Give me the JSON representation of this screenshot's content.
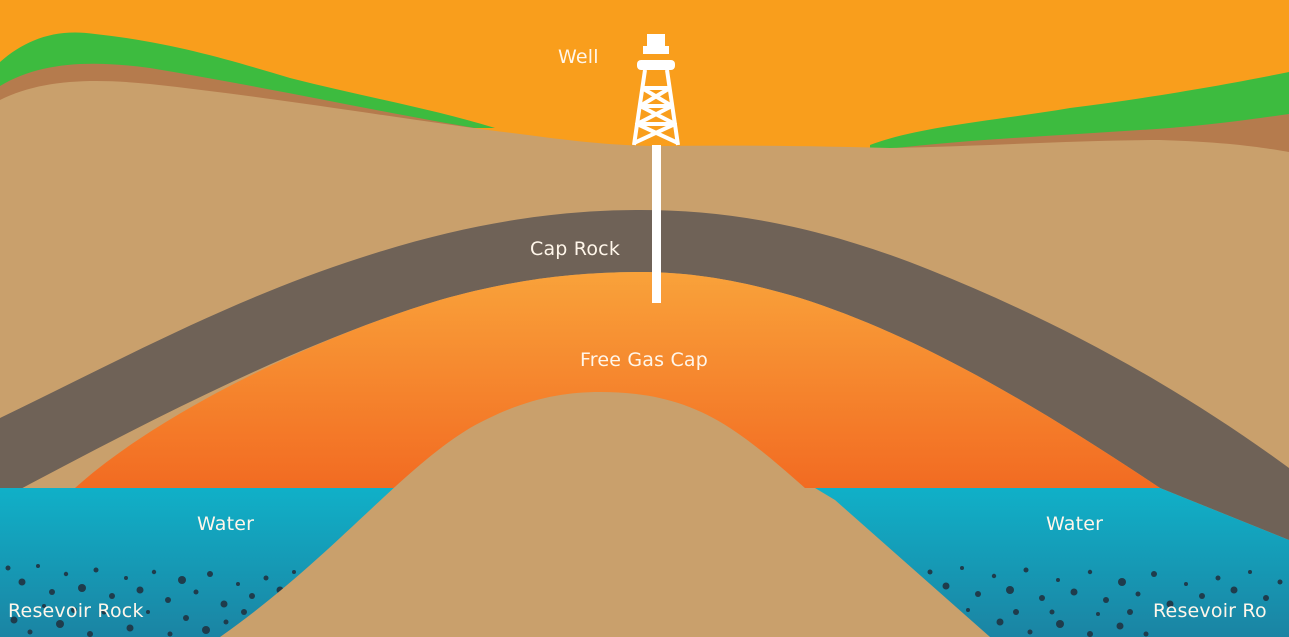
{
  "labels": {
    "well": "Well",
    "cap_rock": "Cap Rock",
    "free_gas_cap": "Free Gas Cap",
    "water_left": "Water",
    "water_right": "Water",
    "reservoir_left": "Resevoir Rock",
    "reservoir_right": "Resevoir Ro"
  },
  "colors": {
    "sky": "#f99e1c",
    "grass": "#3dbb3f",
    "topsoil": "#b57b4d",
    "sediment": "#c9a06c",
    "cap_rock": "#6f6257",
    "gas_top": "#f9a23a",
    "gas_bottom": "#f26b22",
    "water_top": "#10b0c8",
    "water_bottom": "#1b84a3",
    "pebbles": "#1f3c4c",
    "rig": "#ffffff"
  },
  "icons": {
    "rig": "oil-derrick-icon"
  }
}
